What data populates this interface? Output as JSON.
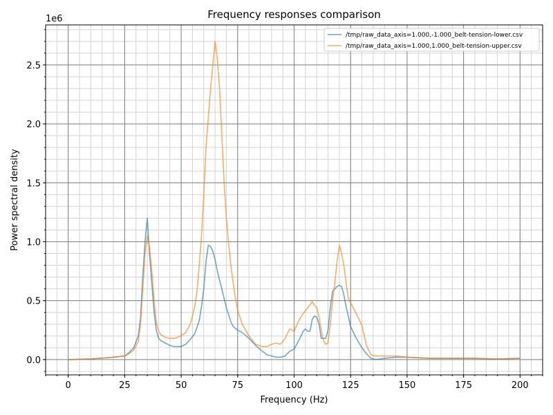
{
  "chart_data": {
    "type": "line",
    "title": "Frequency responses comparison",
    "xlabel": "Frequency (Hz)",
    "ylabel": "Power spectral density",
    "y_offset_label": "1e6",
    "xlim": [
      -10,
      210
    ],
    "ylim": [
      -0.13,
      2.84
    ],
    "x_ticks": [
      0,
      25,
      50,
      75,
      100,
      125,
      150,
      175,
      200
    ],
    "x_tick_labels": [
      "0",
      "25",
      "50",
      "75",
      "100",
      "125",
      "150",
      "175",
      "200"
    ],
    "y_ticks": [
      0.0,
      0.5,
      1.0,
      1.5,
      2.0,
      2.5
    ],
    "y_tick_labels": [
      "0.0",
      "0.5",
      "1.0",
      "1.5",
      "2.0",
      "2.5"
    ],
    "grid": true,
    "legend_position": "top-right",
    "series": [
      {
        "name": "/tmp/raw_data_axis=1.000,-1.000_belt-tension-lower.csv",
        "color": "#1f77b4",
        "x": [
          0,
          10,
          20,
          25,
          27,
          29,
          31,
          32,
          33,
          34,
          35,
          36,
          37,
          38,
          39,
          40,
          41,
          43,
          45,
          47,
          50,
          52,
          54,
          56,
          58,
          59,
          60,
          61,
          62,
          63,
          64,
          65,
          66,
          68,
          70,
          72,
          73,
          75,
          77,
          80,
          83,
          86,
          88,
          90,
          92,
          94,
          96,
          98,
          100,
          102,
          104,
          105,
          106,
          107,
          108,
          109,
          110,
          111,
          112,
          113,
          114,
          115,
          116,
          117,
          118,
          119,
          120,
          121,
          122,
          123,
          125,
          127,
          130,
          132,
          134,
          136,
          140,
          145,
          150,
          160,
          170,
          180,
          190,
          200
        ],
        "y": [
          0.0,
          0.005,
          0.02,
          0.03,
          0.06,
          0.1,
          0.2,
          0.35,
          0.7,
          1.0,
          1.2,
          0.9,
          0.65,
          0.4,
          0.25,
          0.18,
          0.16,
          0.14,
          0.12,
          0.11,
          0.11,
          0.13,
          0.17,
          0.22,
          0.33,
          0.45,
          0.6,
          0.83,
          0.97,
          0.96,
          0.92,
          0.85,
          0.75,
          0.6,
          0.44,
          0.32,
          0.28,
          0.25,
          0.23,
          0.18,
          0.12,
          0.07,
          0.04,
          0.03,
          0.02,
          0.02,
          0.03,
          0.07,
          0.09,
          0.16,
          0.24,
          0.26,
          0.24,
          0.24,
          0.34,
          0.37,
          0.36,
          0.3,
          0.18,
          0.18,
          0.18,
          0.25,
          0.44,
          0.58,
          0.6,
          0.62,
          0.63,
          0.62,
          0.55,
          0.45,
          0.28,
          0.2,
          0.1,
          0.05,
          0.01,
          0.0,
          0.01,
          0.02,
          0.02,
          0.01,
          0.01,
          0.01,
          0.005,
          0.01
        ]
      },
      {
        "name": "/tmp/raw_data_axis=1.000,1.000_belt-tension-upper.csv",
        "color": "#ff7f0e",
        "x": [
          0,
          10,
          20,
          25,
          27,
          29,
          31,
          32,
          33,
          34,
          35,
          36,
          37,
          38,
          39,
          40,
          41,
          43,
          45,
          47,
          50,
          52,
          54,
          55,
          56,
          57,
          58,
          59,
          60,
          61,
          62,
          63,
          64,
          65,
          66,
          67,
          68,
          69,
          70,
          71,
          72,
          73,
          74,
          75,
          77,
          80,
          83,
          86,
          88,
          90,
          92,
          94,
          96,
          98,
          100,
          102,
          104,
          106,
          108,
          110,
          111,
          112,
          113,
          114,
          115,
          116,
          117,
          118,
          119,
          120,
          121,
          122,
          123,
          124,
          125,
          127,
          130,
          132,
          134,
          136,
          140,
          145,
          150,
          160,
          170,
          180,
          190,
          200
        ],
        "y": [
          0.0,
          0.005,
          0.02,
          0.03,
          0.05,
          0.08,
          0.15,
          0.3,
          0.6,
          0.9,
          1.05,
          0.95,
          0.75,
          0.5,
          0.32,
          0.24,
          0.21,
          0.19,
          0.18,
          0.18,
          0.2,
          0.23,
          0.3,
          0.37,
          0.45,
          0.58,
          0.8,
          1.05,
          1.4,
          1.8,
          2.05,
          2.3,
          2.5,
          2.7,
          2.55,
          2.3,
          1.9,
          1.5,
          1.2,
          0.98,
          0.8,
          0.65,
          0.52,
          0.42,
          0.3,
          0.2,
          0.13,
          0.11,
          0.11,
          0.13,
          0.14,
          0.13,
          0.18,
          0.26,
          0.24,
          0.33,
          0.39,
          0.44,
          0.49,
          0.44,
          0.36,
          0.25,
          0.16,
          0.13,
          0.14,
          0.3,
          0.5,
          0.65,
          0.83,
          0.97,
          0.9,
          0.8,
          0.65,
          0.52,
          0.48,
          0.41,
          0.29,
          0.12,
          0.04,
          0.03,
          0.03,
          0.03,
          0.02,
          0.01,
          0.01,
          0.01,
          0.005,
          0.01
        ]
      }
    ]
  }
}
